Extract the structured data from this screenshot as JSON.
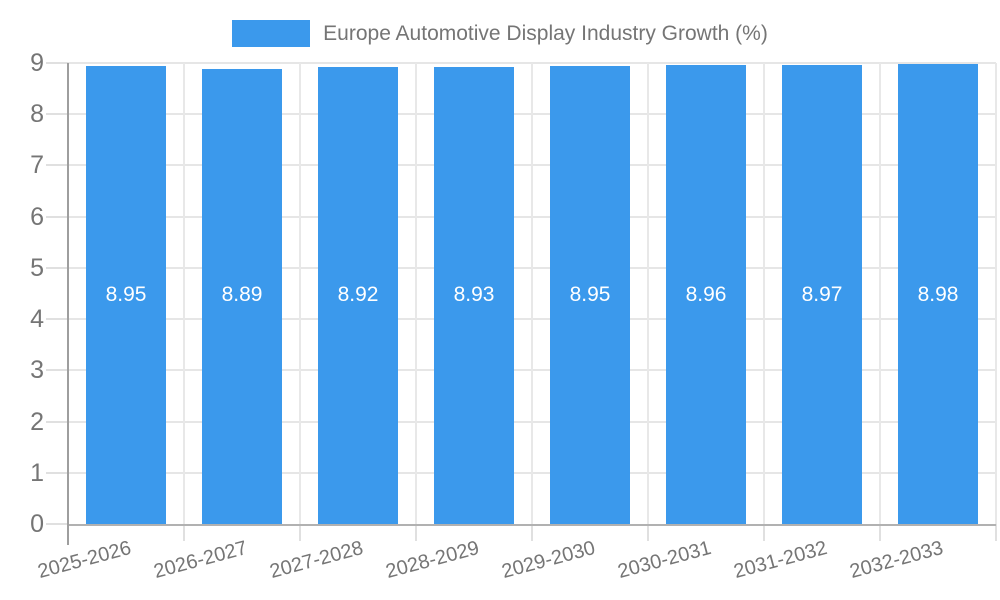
{
  "chart_data": {
    "type": "bar",
    "title": "Europe Automotive Display Industry Growth (%)",
    "categories": [
      "2025-2026",
      "2026-2027",
      "2027-2028",
      "2028-2029",
      "2029-2030",
      "2030-2031",
      "2031-2032",
      "2032-2033"
    ],
    "values": [
      8.95,
      8.89,
      8.92,
      8.93,
      8.95,
      8.96,
      8.97,
      8.98
    ],
    "value_labels": [
      "8.95",
      "8.89",
      "8.92",
      "8.93",
      "8.95",
      "8.96",
      "8.97",
      "8.98"
    ],
    "xlabel": "",
    "ylabel": "",
    "ylim": [
      0,
      9
    ],
    "yticks": [
      0,
      1,
      2,
      3,
      4,
      5,
      6,
      7,
      8,
      9
    ],
    "grid": true,
    "legend_position": "top",
    "x_label_rotation_deg": -15,
    "bar_color": "#3B99EC",
    "value_label_color": "#FFFFFF",
    "axis_text_color": "#757575",
    "gridline_color": "#E6E6E6",
    "category_line_color": "#E8E8E8",
    "tick_color": "#E0E0E0",
    "baseline_color": "#B1B1B1",
    "axis_line_color": "#9E9E9E"
  }
}
